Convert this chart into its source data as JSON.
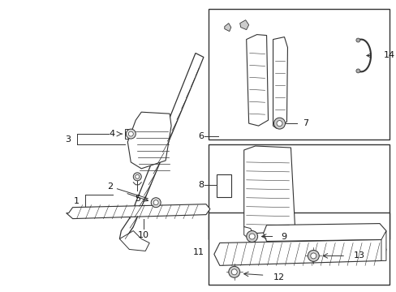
{
  "background_color": "#ffffff",
  "lc": "#333333",
  "figsize": [
    4.89,
    3.6
  ],
  "dpi": 100
}
